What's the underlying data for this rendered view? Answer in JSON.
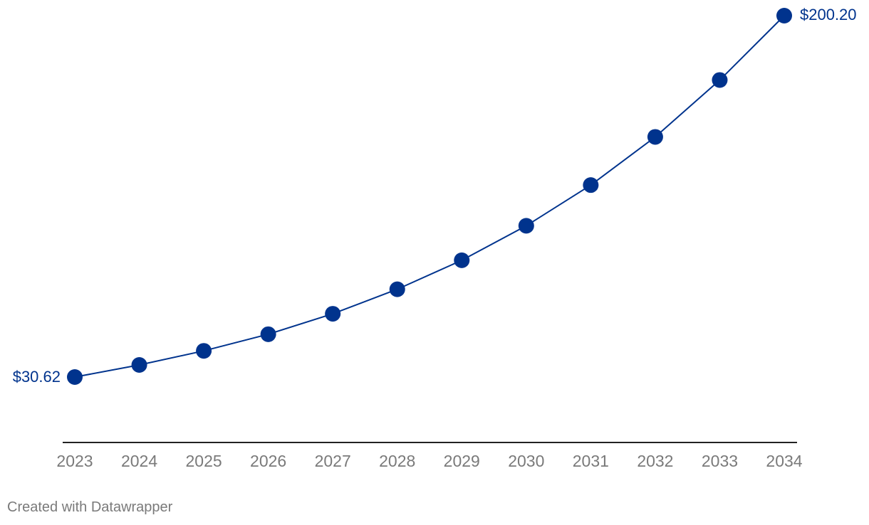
{
  "chart_data": {
    "type": "line",
    "x": [
      "2023",
      "2024",
      "2025",
      "2026",
      "2027",
      "2028",
      "2029",
      "2030",
      "2031",
      "2032",
      "2033",
      "2034"
    ],
    "series": [
      {
        "values": [
          30.62,
          36.3,
          42.9,
          50.7,
          60.3,
          71.8,
          85.4,
          101.6,
          120.7,
          143.3,
          170.0,
          200.2
        ]
      }
    ],
    "data_labels": {
      "first": "$30.62",
      "last": "$200.20"
    },
    "ylim": [
      0,
      200.2
    ],
    "grid": false,
    "color": "#00338d",
    "axis_color": "#222222",
    "tick_color": "#7a7a7a"
  },
  "footer": {
    "credit": "Created with Datawrapper"
  }
}
